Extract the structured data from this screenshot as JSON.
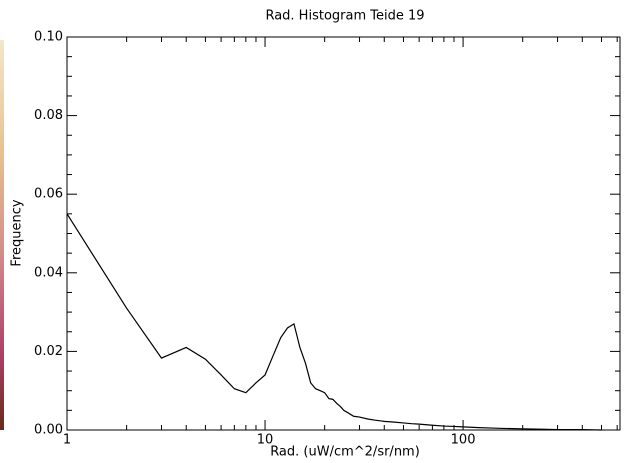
{
  "chart_data": {
    "type": "line",
    "title": "Rad. Histogram Teide 19",
    "x_label": "Rad. (uW/cm^2/sr/nm)",
    "y_label": "Frequency",
    "log_x": true,
    "color": "#000000",
    "x": [
      1,
      2,
      3,
      4,
      5,
      6,
      7,
      8,
      9,
      10,
      11,
      12,
      13,
      14,
      15,
      16,
      17,
      18,
      19,
      20,
      21,
      22,
      23,
      24,
      25,
      26,
      28,
      30,
      33,
      36,
      40,
      45,
      50,
      55,
      60,
      70,
      80,
      90,
      100,
      120,
      140,
      160,
      200,
      250,
      300,
      400,
      500
    ],
    "values": [
      0.055,
      0.031,
      0.0183,
      0.021,
      0.018,
      0.014,
      0.0105,
      0.0095,
      0.012,
      0.014,
      0.019,
      0.0235,
      0.026,
      0.027,
      0.021,
      0.017,
      0.012,
      0.0105,
      0.01,
      0.0095,
      0.008,
      0.0078,
      0.0068,
      0.006,
      0.005,
      0.0045,
      0.0035,
      0.0033,
      0.0028,
      0.0025,
      0.0022,
      0.002,
      0.0018,
      0.0016,
      0.0015,
      0.0012,
      0.001,
      0.0009,
      0.0008,
      0.0006,
      0.0005,
      0.0004,
      0.0003,
      0.0002,
      0.0001,
      0.0001,
      0.0
    ],
    "xlim": [
      1,
      620
    ],
    "ylim": [
      0,
      0.1
    ],
    "xticks": [
      1,
      10,
      100
    ],
    "xminorticks": [
      2,
      3,
      4,
      5,
      6,
      7,
      8,
      9,
      20,
      30,
      40,
      50,
      60,
      70,
      80,
      90,
      200,
      300,
      400,
      500,
      600
    ],
    "yticks": [
      {
        "value": 0,
        "label": "0.00"
      },
      {
        "value": 0.02,
        "label": "0.02"
      },
      {
        "value": 0.04,
        "label": "0.04"
      },
      {
        "value": 0.06,
        "label": "0.06"
      },
      {
        "value": 0.08,
        "label": "0.08"
      },
      {
        "value": 0.1,
        "label": "0.10"
      }
    ],
    "yminorticks": [
      0.005,
      0.01,
      0.015,
      0.025,
      0.03,
      0.035,
      0.045,
      0.05,
      0.055,
      0.065,
      0.07,
      0.075,
      0.085,
      0.09,
      0.095
    ]
  }
}
